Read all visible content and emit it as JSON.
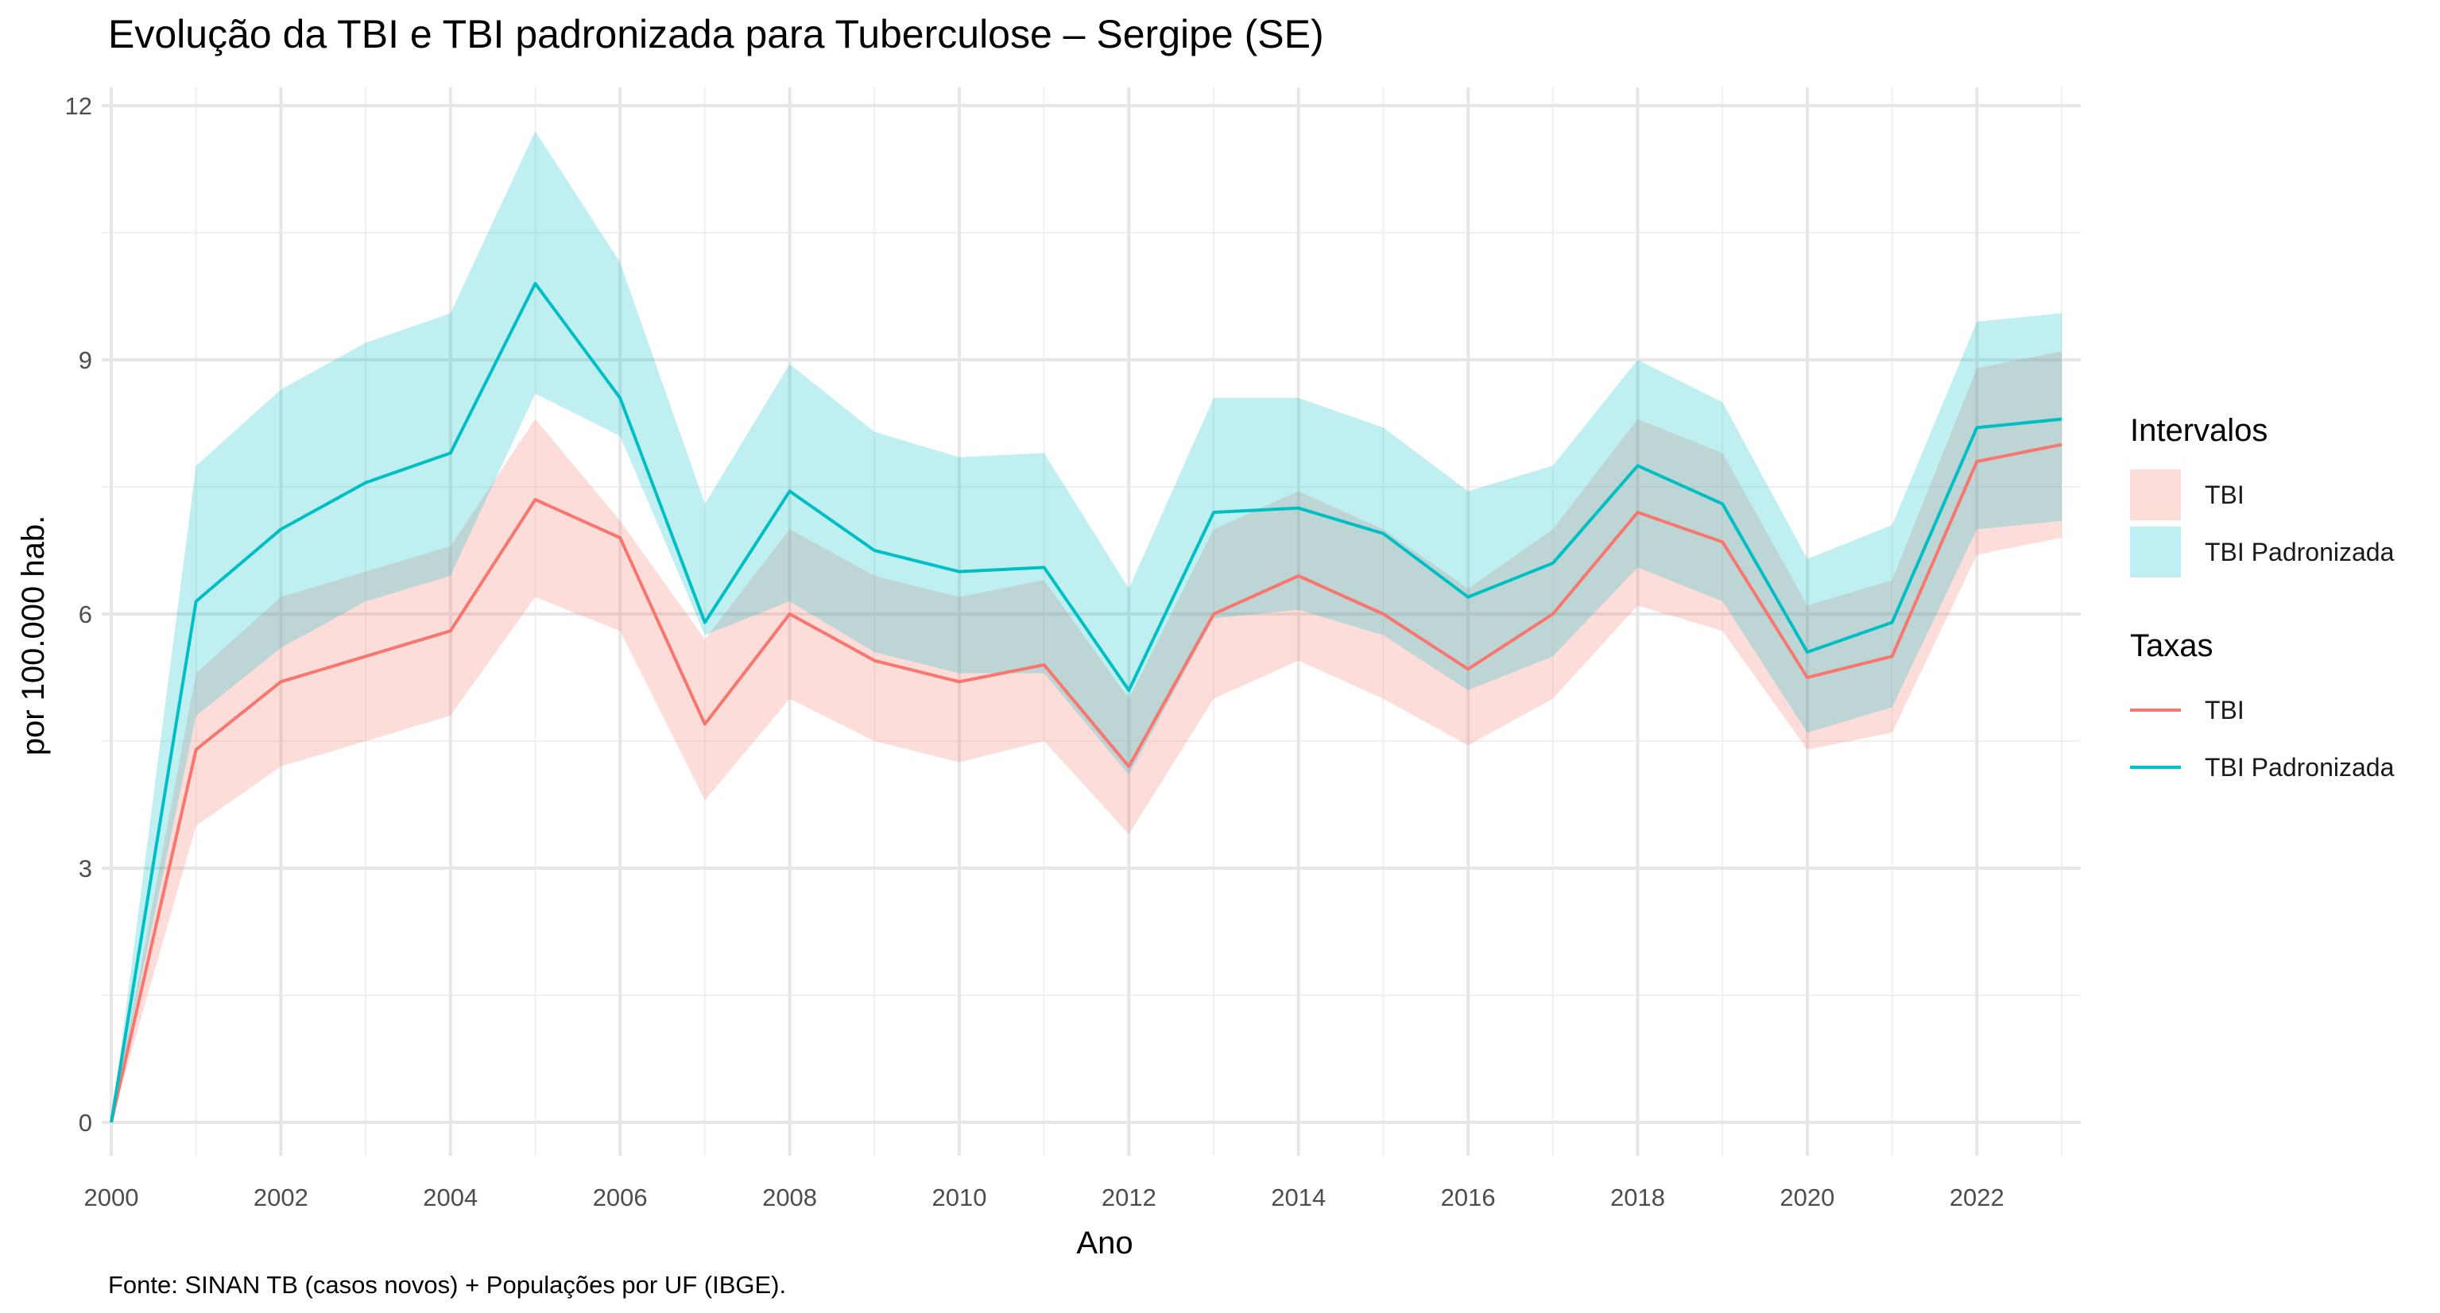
{
  "chart_data": {
    "type": "line",
    "title": "Evolução da TBI e TBI padronizada para Tuberculose – Sergipe (SE)",
    "xlabel": "Ano",
    "ylabel": "por 100.000 hab.",
    "caption": "Fonte: SINAN TB (casos novos) + Populações por UF (IBGE).",
    "xlim": [
      2000,
      2023
    ],
    "ylim": [
      0,
      12
    ],
    "x_ticks": [
      2000,
      2002,
      2004,
      2006,
      2008,
      2010,
      2012,
      2014,
      2016,
      2018,
      2020,
      2022
    ],
    "x_tick_labels": [
      "2000",
      "2002",
      "2004",
      "2006",
      "2008",
      "2010",
      "2012",
      "2014",
      "2016",
      "2018",
      "2020",
      "2022"
    ],
    "y_ticks": [
      0,
      3,
      6,
      9,
      12
    ],
    "y_tick_labels": [
      "0",
      "3",
      "6",
      "9",
      "12"
    ],
    "grid": true,
    "legend_position": "right",
    "x": [
      2000,
      2001,
      2002,
      2003,
      2004,
      2005,
      2006,
      2007,
      2008,
      2009,
      2010,
      2011,
      2012,
      2013,
      2014,
      2015,
      2016,
      2017,
      2018,
      2019,
      2020,
      2021,
      2022,
      2023
    ],
    "series": [
      {
        "name": "TBI",
        "color": "#F8766D",
        "values": [
          0,
          4.4,
          5.2,
          5.5,
          5.8,
          7.35,
          6.9,
          4.7,
          6.0,
          5.45,
          5.2,
          5.4,
          4.2,
          6.0,
          6.45,
          6.0,
          5.35,
          6.0,
          7.2,
          6.85,
          5.25,
          5.5,
          7.8,
          8.0
        ],
        "lower": [
          0,
          3.5,
          4.2,
          4.5,
          4.8,
          6.2,
          5.8,
          3.8,
          5.0,
          4.5,
          4.25,
          4.5,
          3.4,
          5.0,
          5.45,
          5.0,
          4.45,
          5.0,
          6.1,
          5.8,
          4.4,
          4.6,
          6.7,
          6.9
        ],
        "upper": [
          0,
          5.3,
          6.2,
          6.5,
          6.8,
          8.3,
          7.1,
          5.7,
          7.0,
          6.45,
          6.2,
          6.4,
          5.0,
          7.0,
          7.45,
          7.0,
          6.3,
          7.0,
          8.3,
          7.9,
          6.1,
          6.4,
          8.9,
          9.1
        ]
      },
      {
        "name": "TBI Padronizada",
        "color": "#00BFC4",
        "values": [
          0,
          6.15,
          7.0,
          7.55,
          7.9,
          9.9,
          8.55,
          5.9,
          7.45,
          6.75,
          6.5,
          6.55,
          5.1,
          7.2,
          7.25,
          6.95,
          6.2,
          6.6,
          7.75,
          7.3,
          5.55,
          5.9,
          8.2,
          8.3
        ],
        "lower": [
          0,
          4.8,
          5.6,
          6.15,
          6.45,
          8.6,
          8.1,
          5.75,
          6.15,
          5.55,
          5.3,
          5.3,
          4.1,
          5.95,
          6.05,
          5.75,
          5.1,
          5.5,
          6.55,
          6.15,
          4.6,
          4.9,
          7.0,
          7.1
        ],
        "upper": [
          0,
          7.75,
          8.65,
          9.2,
          9.55,
          11.7,
          10.15,
          7.3,
          8.95,
          8.15,
          7.85,
          7.9,
          6.3,
          8.55,
          8.55,
          8.2,
          7.45,
          7.75,
          9.0,
          8.5,
          6.65,
          7.05,
          9.45,
          9.55
        ]
      }
    ]
  },
  "legend": {
    "intervals_title": "Intervalos",
    "intervals_items": [
      "TBI",
      "TBI Padronizada"
    ],
    "rates_title": "Taxas",
    "rates_items": [
      "TBI",
      "TBI Padronizada"
    ],
    "colors": {
      "tbi_ribbon": "#F8766D",
      "padronizada_ribbon": "#00BFC4"
    }
  }
}
